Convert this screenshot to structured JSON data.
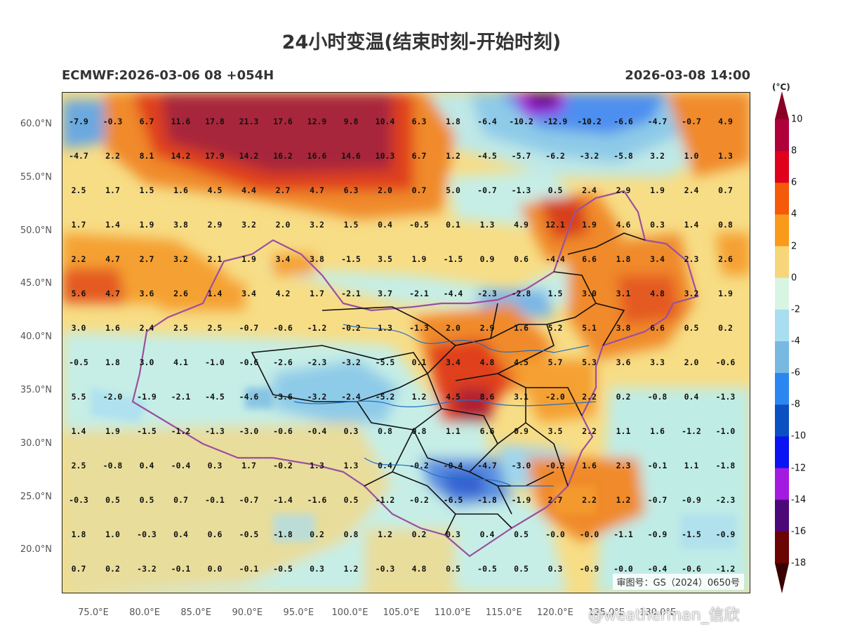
{
  "title": "24小时变温(结束时刻-开始时刻)",
  "subtitle_left": "ECMWF:2026-03-06 08 +054H",
  "subtitle_right": "2026-03-08 14:00",
  "approval_number": "审图号：GS（2024）0650号",
  "watermark": "@weatherman_信欣",
  "unit": "(°C)",
  "lat_labels": [
    "60.0°N",
    "55.0°N",
    "50.0°N",
    "45.0°N",
    "40.0°N",
    "35.0°N",
    "30.0°N",
    "25.0°N",
    "20.0°N"
  ],
  "lon_labels": [
    "75.0°E",
    "80.0°E",
    "85.0°E",
    "90.0°E",
    "95.0°E",
    "100.0°E",
    "105.0°E",
    "110.0°E",
    "115.0°E",
    "120.0°E",
    "125.0°E",
    "130.0°E"
  ],
  "colorbar": {
    "labels": [
      "10",
      "8",
      "6",
      "4",
      "2",
      "0",
      "-2",
      "-4",
      "-6",
      "-8",
      "-10",
      "-12",
      "-14",
      "-16",
      "-18"
    ],
    "colors": [
      "#b0003a",
      "#e0001c",
      "#f45a0a",
      "#fa9a1a",
      "#f7d67a",
      "#d8f5e4",
      "#a9ddf0",
      "#78b9e2",
      "#2c86f0",
      "#0a50c0",
      "#0a14f2",
      "#a41ae0",
      "#4c0878",
      "#6c0404"
    ],
    "top_color": "#8a0024",
    "bottom_color": "#3a0000"
  },
  "grid_values": [
    [
      "-7.9",
      "-0.3",
      "6.7",
      "11.6",
      "17.8",
      "21.3",
      "17.6",
      "12.9",
      "9.8",
      "10.4",
      "6.3",
      "1.8",
      "-6.4",
      "-10.2",
      "-12.9",
      "-10.2",
      "-6.6",
      "-4.7",
      "-0.7",
      "4.9"
    ],
    [
      "-4.7",
      "2.2",
      "8.1",
      "14.2",
      "17.9",
      "14.2",
      "16.2",
      "16.6",
      "14.6",
      "10.3",
      "6.7",
      "1.2",
      "-4.5",
      "-5.7",
      "-6.2",
      "-3.2",
      "-5.8",
      "3.2",
      "1.0",
      "1.3"
    ],
    [
      "2.5",
      "1.7",
      "1.5",
      "1.6",
      "4.5",
      "4.4",
      "2.7",
      "4.7",
      "6.3",
      "2.0",
      "0.7",
      "5.0",
      "-0.7",
      "-1.3",
      "0.5",
      "2.4",
      "2.9",
      "1.9",
      "2.4",
      "0.7"
    ],
    [
      "1.7",
      "1.4",
      "1.9",
      "3.8",
      "2.9",
      "3.2",
      "2.0",
      "3.2",
      "1.5",
      "0.4",
      "-0.5",
      "0.1",
      "1.3",
      "4.9",
      "12.1",
      "1.9",
      "4.6",
      "0.3",
      "1.4",
      "0.8"
    ],
    [
      "2.2",
      "4.7",
      "2.7",
      "3.2",
      "2.1",
      "1.9",
      "3.4",
      "3.8",
      "-1.5",
      "3.5",
      "1.9",
      "-1.5",
      "0.9",
      "0.6",
      "-4.4",
      "6.6",
      "1.8",
      "3.4",
      "2.3",
      "2.6"
    ],
    [
      "5.6",
      "4.7",
      "3.6",
      "2.6",
      "1.4",
      "3.4",
      "4.2",
      "1.7",
      "-2.1",
      "3.7",
      "-2.1",
      "-4.4",
      "-2.3",
      "-2.8",
      "1.5",
      "3.0",
      "3.1",
      "4.8",
      "3.2",
      "1.9"
    ],
    [
      "3.0",
      "1.6",
      "2.4",
      "2.5",
      "2.5",
      "-0.7",
      "-0.6",
      "-1.2",
      "-0.2",
      "1.3",
      "-1.3",
      "2.0",
      "2.9",
      "1.6",
      "5.2",
      "5.1",
      "3.8",
      "6.6",
      "0.5",
      "0.2"
    ],
    [
      "-0.5",
      "1.8",
      "3.0",
      "4.1",
      "-1.0",
      "-0.6",
      "-2.6",
      "-2.3",
      "-3.2",
      "-5.5",
      "0.1",
      "3.4",
      "4.8",
      "4.5",
      "5.7",
      "5.3",
      "3.6",
      "3.3",
      "2.0",
      "-0.6"
    ],
    [
      "5.5",
      "-2.0",
      "-1.9",
      "-2.1",
      "-4.5",
      "-4.6",
      "-3.6",
      "-3.2",
      "-2.4",
      "-5.2",
      "1.2",
      "4.5",
      "8.6",
      "3.1",
      "-2.0",
      "2.2",
      "0.2",
      "-0.8",
      "0.4",
      "-1.3"
    ],
    [
      "1.4",
      "1.9",
      "-1.5",
      "-1.2",
      "-1.3",
      "-3.0",
      "-0.6",
      "-0.4",
      "0.3",
      "0.8",
      "0.8",
      "1.1",
      "6.6",
      "0.9",
      "3.5",
      "2.2",
      "1.1",
      "1.6",
      "-1.2",
      "-1.0"
    ],
    [
      "2.5",
      "-0.8",
      "0.4",
      "-0.4",
      "0.3",
      "1.7",
      "-0.2",
      "1.3",
      "1.3",
      "0.4",
      "-0.2",
      "-0.4",
      "-4.7",
      "-3.0",
      "-0.2",
      "1.6",
      "2.3",
      "-0.1",
      "1.1",
      "-1.8"
    ],
    [
      "-0.3",
      "0.5",
      "0.5",
      "0.7",
      "-0.1",
      "-0.7",
      "-1.4",
      "-1.6",
      "0.5",
      "-1.2",
      "-0.2",
      "-6.5",
      "-1.8",
      "-1.9",
      "2.7",
      "2.2",
      "1.2",
      "-0.7",
      "-0.9",
      "-2.3"
    ],
    [
      "1.8",
      "1.0",
      "-0.3",
      "0.4",
      "0.6",
      "-0.5",
      "-1.8",
      "0.2",
      "0.8",
      "1.2",
      "0.2",
      "0.3",
      "0.4",
      "0.5",
      "-0.0",
      "-0.0",
      "-1.1",
      "-0.9",
      "-1.5",
      "-0.9"
    ],
    [
      "0.7",
      "0.2",
      "-3.2",
      "-0.1",
      "0.0",
      "-0.1",
      "-0.5",
      "0.3",
      "1.2",
      "-0.3",
      "4.8",
      "0.5",
      "-0.5",
      "0.5",
      "0.3",
      "-0.9",
      "-0.0",
      "-0.4",
      "-0.6",
      "-1.2"
    ]
  ]
}
